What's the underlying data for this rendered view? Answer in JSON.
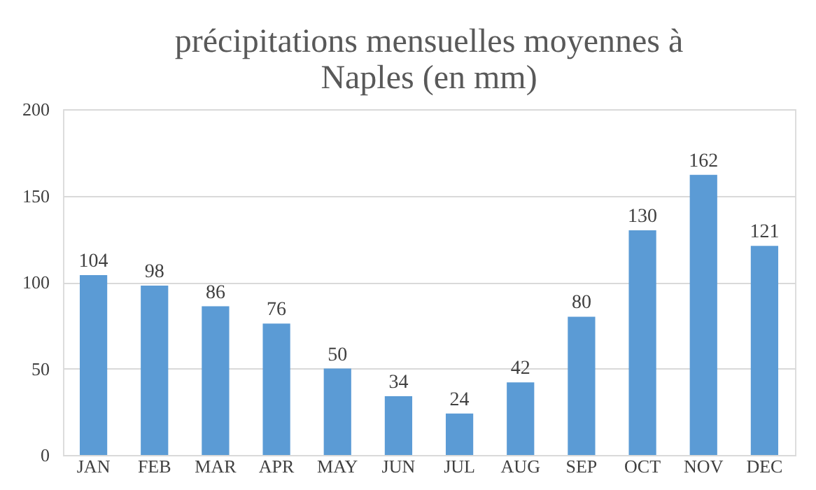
{
  "chart_data": {
    "type": "bar",
    "title": "précipitations mensuelles moyennes à Naples (en mm)",
    "categories": [
      "JAN",
      "FEB",
      "MAR",
      "APR",
      "MAY",
      "JUN",
      "JUL",
      "AUG",
      "SEP",
      "OCT",
      "NOV",
      "DEC"
    ],
    "values": [
      104,
      98,
      86,
      76,
      50,
      34,
      24,
      42,
      80,
      130,
      162,
      121
    ],
    "color": "#5b9bd5",
    "ylim": [
      0,
      200
    ],
    "yticks": [
      0,
      50,
      100,
      150,
      200
    ],
    "grid": "y",
    "data_labels": true
  }
}
